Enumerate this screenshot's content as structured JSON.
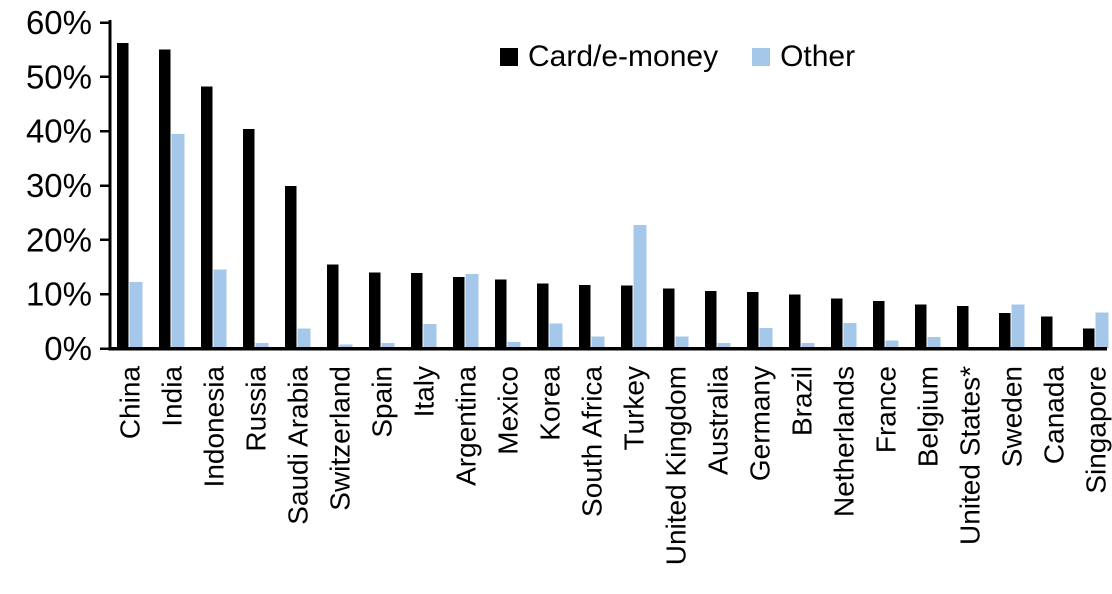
{
  "page": {
    "background": "#FFFFFF"
  },
  "chart_data": {
    "type": "bar",
    "title": "",
    "xlabel": "",
    "ylabel": "",
    "categories": [
      "China",
      "India",
      "Indonesia",
      "Russia",
      "Saudi Arabia",
      "Switzerland",
      "Spain",
      "Italy",
      "Argentina",
      "Mexico",
      "Korea",
      "South Africa",
      "Turkey",
      "United Kingdom",
      "Australia",
      "Germany",
      "Brazil",
      "Netherlands",
      "France",
      "Belgium",
      "United States*",
      "Sweden",
      "Canada",
      "Singapore"
    ],
    "series": [
      {
        "name": "Card/e-money",
        "color": "#000000",
        "values": [
          56.2,
          55.0,
          48.2,
          40.4,
          29.9,
          15.5,
          14.0,
          13.9,
          13.2,
          12.7,
          12.0,
          11.7,
          11.6,
          11.0,
          10.6,
          10.4,
          9.9,
          9.2,
          8.7,
          8.1,
          7.8,
          6.5,
          5.9,
          3.7
        ]
      },
      {
        "name": "Other",
        "color": "#A5C8EA",
        "values": [
          12.2,
          39.5,
          14.5,
          1.0,
          3.7,
          0.7,
          1.0,
          4.5,
          13.7,
          1.2,
          4.6,
          2.2,
          22.7,
          2.2,
          1.0,
          3.8,
          1.0,
          4.7,
          1.5,
          2.1,
          0.3,
          8.1,
          0.0,
          6.6
        ]
      }
    ],
    "ylim": [
      0,
      60
    ],
    "ytick_values": [
      0,
      10,
      20,
      30,
      40,
      50,
      60
    ],
    "ytick_labels": [
      "0%",
      "10%",
      "20%",
      "30%",
      "40%",
      "50%",
      "60%"
    ],
    "grid": false,
    "legend_position": "top-center",
    "axis_color": "#000000",
    "text_color": "#000000"
  }
}
